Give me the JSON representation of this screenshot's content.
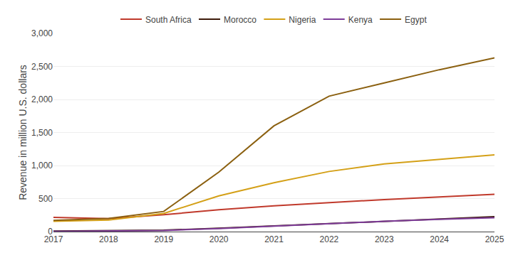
{
  "chart_data": {
    "type": "line",
    "x": [
      2017,
      2018,
      2019,
      2020,
      2021,
      2022,
      2023,
      2024,
      2025
    ],
    "series": [
      {
        "name": "South Africa",
        "color": "#c0392b",
        "values": [
          215,
          195,
          255,
          330,
          390,
          440,
          485,
          525,
          565
        ]
      },
      {
        "name": "Morocco",
        "color": "#3d1a0a",
        "values": [
          8,
          12,
          22,
          50,
          85,
          125,
          160,
          195,
          225
        ]
      },
      {
        "name": "Nigeria",
        "color": "#d4a017",
        "values": [
          155,
          175,
          275,
          540,
          740,
          910,
          1025,
          1095,
          1160
        ]
      },
      {
        "name": "Kenya",
        "color": "#7d3c98",
        "values": [
          3,
          7,
          17,
          45,
          82,
          120,
          155,
          185,
          210
        ]
      },
      {
        "name": "Egypt",
        "color": "#8B6010",
        "values": [
          170,
          200,
          305,
          900,
          1600,
          2050,
          2250,
          2450,
          2630
        ]
      }
    ],
    "ylabel": "Revenue in million U.S. dollars",
    "xlim": [
      2017,
      2025
    ],
    "xticks": [
      2017,
      2018,
      2019,
      2020,
      2021,
      2022,
      2023,
      2024,
      2025
    ],
    "ylim": [
      0,
      3000
    ],
    "yticks": [
      0,
      500,
      {
        "value": 1000,
        "label": "1,000"
      },
      {
        "value": 1500,
        "label": "1,500"
      },
      {
        "value": 2000,
        "label": "2,000"
      },
      {
        "value": 2500,
        "label": "2,500"
      },
      {
        "value": 3000,
        "label": "3,000"
      }
    ],
    "grid": "y",
    "legend": "top"
  }
}
